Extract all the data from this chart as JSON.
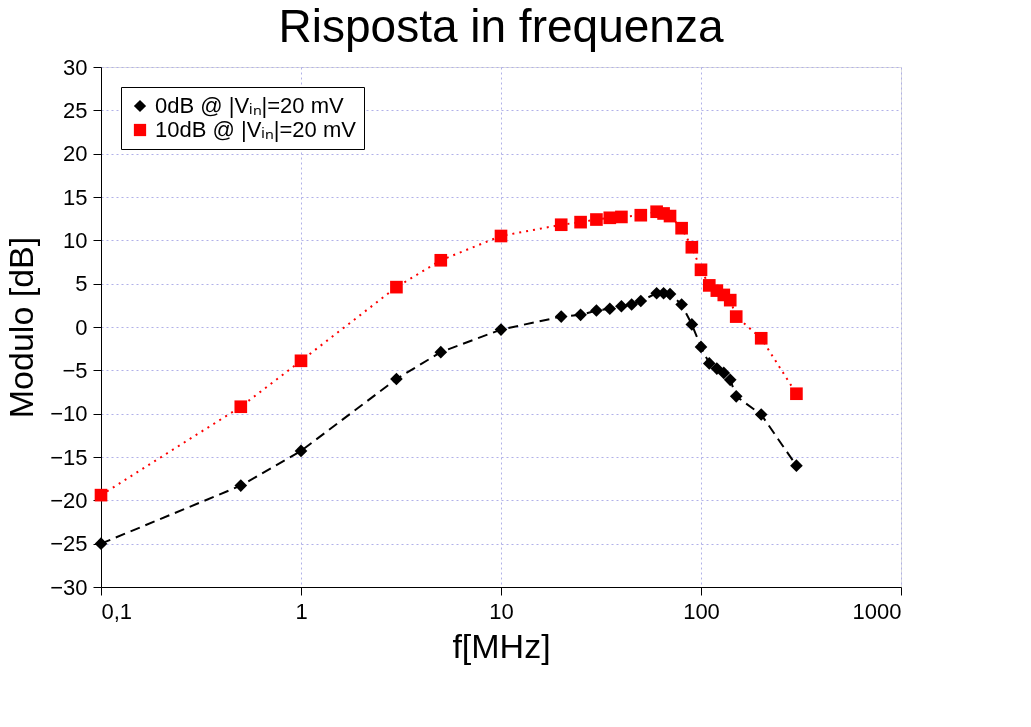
{
  "chart_data": {
    "type": "line",
    "title": "Risposta in frequenza",
    "xlabel": "f[MHz]",
    "ylabel": "Modulo [dB]",
    "log": "x",
    "xlim": [
      0.1,
      1000
    ],
    "xticks": [
      {
        "value": 0.1,
        "label": "0,1"
      },
      1,
      10,
      100,
      1000
    ],
    "ylim": [
      -30,
      30
    ],
    "yticks": [
      -30,
      -25,
      -20,
      -15,
      -10,
      -5,
      0,
      5,
      10,
      15,
      20,
      25,
      30
    ],
    "grid": true,
    "legend": "top left",
    "series": [
      {
        "name": "0dB @ |Vᵢₙ|=20 mV",
        "color": "#000000",
        "marker": "diamond",
        "line_style": "dashed",
        "x": [
          0.1,
          0.5,
          1,
          3,
          5,
          10,
          20,
          25,
          30,
          35,
          40,
          45,
          50,
          60,
          65,
          70,
          80,
          90,
          100,
          110,
          120,
          130,
          140,
          150,
          200,
          300
        ],
        "values": [
          -25,
          -18.3,
          -14.3,
          -6,
          -2.9,
          -0.3,
          1.2,
          1.4,
          1.9,
          2.1,
          2.4,
          2.6,
          3.0,
          3.9,
          3.9,
          3.8,
          2.6,
          0.3,
          -2.3,
          -4.2,
          -4.8,
          -5.3,
          -6.1,
          -8,
          -10.1,
          -16
        ]
      },
      {
        "name": "10dB @ |Vᵢₙ|=20 mV",
        "color": "#ff0000",
        "marker": "square",
        "line_style": "dotted",
        "x": [
          0.1,
          0.5,
          1,
          3,
          5,
          10,
          20,
          25,
          30,
          35,
          40,
          50,
          60,
          65,
          70,
          80,
          90,
          100,
          110,
          120,
          130,
          140,
          150,
          200,
          300
        ],
        "values": [
          -19.4,
          -9.2,
          -3.9,
          4.6,
          7.7,
          10.5,
          11.8,
          12.1,
          12.4,
          12.6,
          12.7,
          12.9,
          13.3,
          13.1,
          12.8,
          11.4,
          9.2,
          6.6,
          4.8,
          4.2,
          3.7,
          3.1,
          1.2,
          -1.3,
          -7.7
        ]
      }
    ]
  }
}
